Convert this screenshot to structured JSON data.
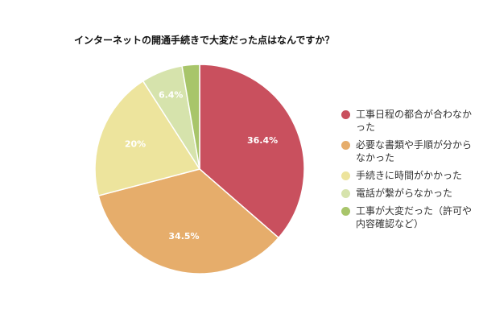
{
  "chart_data": {
    "type": "pie",
    "title": "インターネットの開通手続きで大変だった点はなんですか？",
    "categories": [
      "工事日程の都合が合わなかった",
      "必要な書類や手順が分からなかった",
      "手続きに時間がかかった",
      "電話が繋がらなかった",
      "工事が大変だった（許可や内容確認など）"
    ],
    "legend_lines": [
      [
        "工事日程の都合が合わなか",
        "った"
      ],
      [
        "必要な書類や手順が分から",
        "なかった"
      ],
      [
        "手続きに時間がかかった"
      ],
      [
        "電話が繋がらなかった"
      ],
      [
        "工事が大変だった（許可や",
        "内容確認など）"
      ]
    ],
    "values": [
      36.4,
      34.5,
      20,
      6.4,
      2.7
    ],
    "data_labels": [
      "36.4%",
      "34.5%",
      "20%",
      "6.4%",
      ""
    ],
    "colors": [
      "#c9505e",
      "#e6ad6b",
      "#ede49d",
      "#d6e3ac",
      "#a8c56a"
    ],
    "legend_position": "right"
  }
}
